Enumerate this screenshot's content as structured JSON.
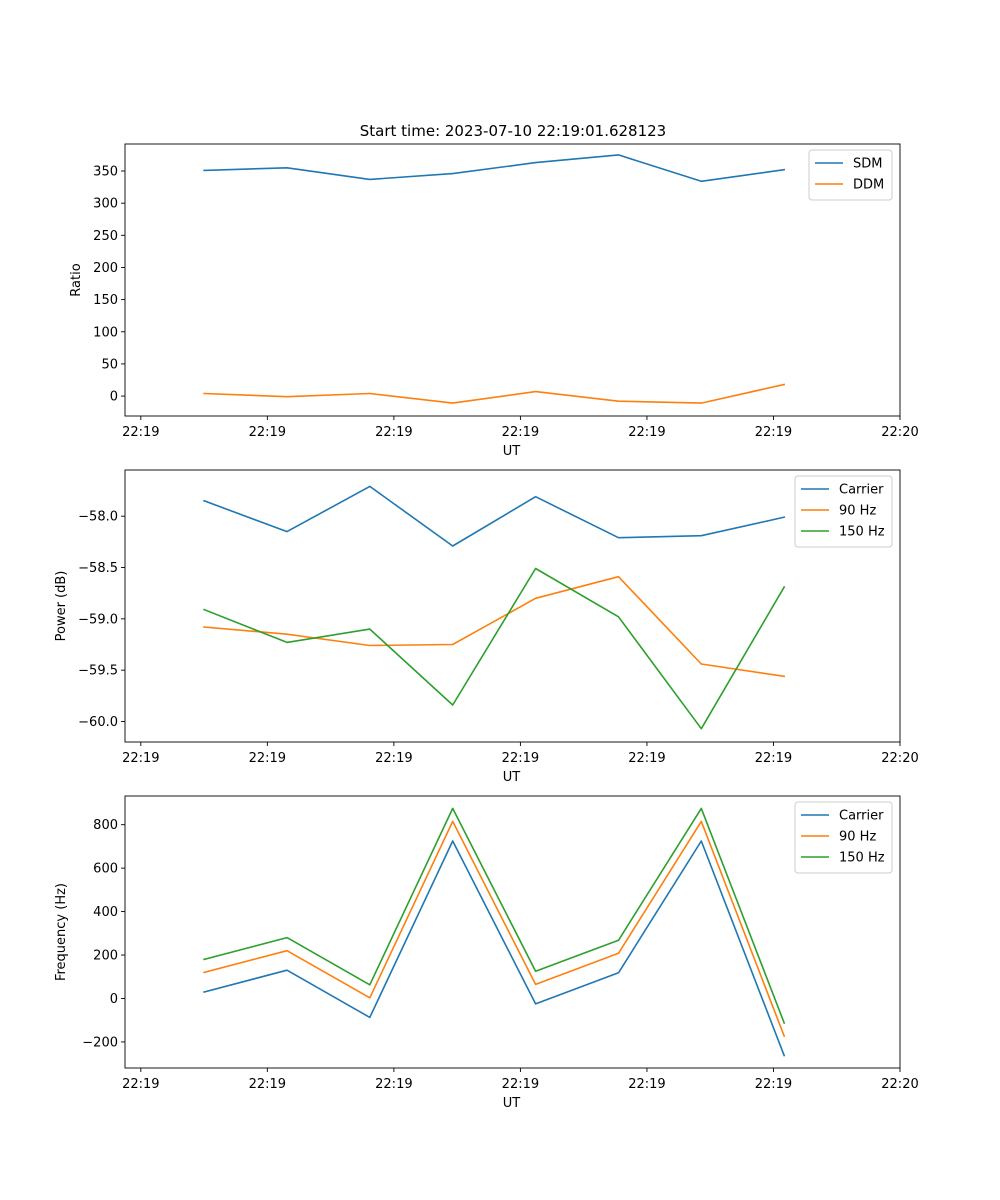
{
  "title": "Start time: 2023-07-10 22:19:01.628123",
  "chart_data": [
    {
      "type": "line",
      "xlabel": "UT",
      "ylabel": "Ratio",
      "x_tick_labels": [
        "22:19",
        "22:19",
        "22:19",
        "22:19",
        "22:19",
        "22:19",
        "22:20"
      ],
      "x": [
        0.5,
        1.155,
        1.81,
        2.465,
        3.12,
        3.775,
        4.43,
        5.085
      ],
      "xlim": [
        -0.125,
        6.0
      ],
      "ylim": [
        -31,
        392
      ],
      "y_ticks": [
        0,
        50,
        100,
        150,
        200,
        250,
        300,
        350
      ],
      "legend_position": "top-right",
      "series": [
        {
          "name": "SDM",
          "color": "#1f77b4",
          "values": [
            351,
            355,
            337,
            346,
            363,
            375,
            334,
            352
          ]
        },
        {
          "name": "DDM",
          "color": "#ff7f0e",
          "values": [
            4,
            -1,
            4,
            -11,
            7,
            -8,
            -11,
            18
          ]
        }
      ]
    },
    {
      "type": "line",
      "xlabel": "UT",
      "ylabel": "Power (dB)",
      "x_tick_labels": [
        "22:19",
        "22:19",
        "22:19",
        "22:19",
        "22:19",
        "22:19",
        "22:20"
      ],
      "x": [
        0.5,
        1.155,
        1.81,
        2.465,
        3.12,
        3.775,
        4.43,
        5.085
      ],
      "xlim": [
        -0.125,
        6.0
      ],
      "ylim": [
        -60.2,
        -57.55
      ],
      "y_ticks": [
        -60.0,
        -59.5,
        -59.0,
        -58.5,
        -58.0
      ],
      "y_tick_labels": [
        "−60.0",
        "−59.5",
        "−59.0",
        "−58.5",
        "−58.0"
      ],
      "legend_position": "top-right",
      "series": [
        {
          "name": "Carrier",
          "color": "#1f77b4",
          "values": [
            -57.85,
            -58.15,
            -57.71,
            -58.29,
            -57.81,
            -58.21,
            -58.19,
            -58.01
          ]
        },
        {
          "name": "90 Hz",
          "color": "#ff7f0e",
          "values": [
            -59.08,
            -59.15,
            -59.26,
            -59.25,
            -58.8,
            -58.59,
            -59.44,
            -59.56
          ]
        },
        {
          "name": "150 Hz",
          "color": "#2ca02c",
          "values": [
            -58.91,
            -59.23,
            -59.1,
            -59.84,
            -58.51,
            -58.98,
            -60.07,
            -58.69
          ]
        }
      ]
    },
    {
      "type": "line",
      "xlabel": "UT",
      "ylabel": "Frequency (Hz)",
      "x_tick_labels": [
        "22:19",
        "22:19",
        "22:19",
        "22:19",
        "22:19",
        "22:19",
        "22:20"
      ],
      "x": [
        0.5,
        1.155,
        1.81,
        2.465,
        3.12,
        3.775,
        4.43,
        5.085
      ],
      "xlim": [
        -0.125,
        6.0
      ],
      "ylim": [
        -320,
        932
      ],
      "y_ticks": [
        -200,
        0,
        200,
        400,
        600,
        800
      ],
      "y_tick_labels": [
        "−200",
        "0",
        "200",
        "400",
        "600",
        "800"
      ],
      "legend_position": "top-right",
      "series": [
        {
          "name": "Carrier",
          "color": "#1f77b4",
          "values": [
            30,
            130,
            -87,
            725,
            -25,
            118,
            725,
            -263
          ]
        },
        {
          "name": "90 Hz",
          "color": "#ff7f0e",
          "values": [
            120,
            220,
            3,
            815,
            65,
            208,
            815,
            -173
          ]
        },
        {
          "name": "150 Hz",
          "color": "#2ca02c",
          "values": [
            180,
            280,
            63,
            875,
            125,
            268,
            875,
            -113
          ]
        }
      ]
    }
  ]
}
